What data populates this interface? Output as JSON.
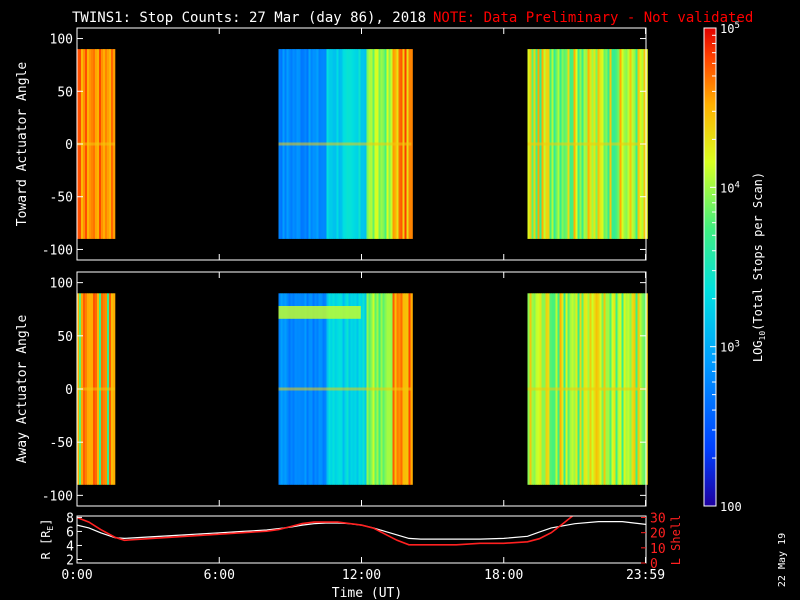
{
  "title": "TWINS1: Stop Counts: 27 Mar (day  86), 2018",
  "note": "NOTE: Data Preliminary - Not validated",
  "colors": {
    "title": "#ffffff",
    "note": "#ff0000",
    "background": "#000000",
    "axis": "#ffffff",
    "r_line": "#ffffff",
    "lshell_line": "#ff2020"
  },
  "colorbar": {
    "label": "LOG10(Total Stops per Scan)",
    "label_main": "LOG",
    "label_sub": "10",
    "label_rest": "(Total Stops per Scan)",
    "min": 100,
    "max": 100000,
    "ticks": [
      {
        "value": 100000,
        "base": "10",
        "exp": "5"
      },
      {
        "value": 10000,
        "base": "10",
        "exp": "4"
      },
      {
        "value": 1000,
        "base": "10",
        "exp": "3"
      },
      {
        "value": 100,
        "base": "100",
        "exp": ""
      }
    ]
  },
  "chart_data": [
    {
      "type": "heatmap",
      "ylabel": "Toward Actuator Angle",
      "x_range_hours": [
        0,
        24
      ],
      "ylim": [
        -110,
        110
      ],
      "yticks": [
        "100",
        "50",
        "0",
        "-50",
        "-100"
      ],
      "yticks_values": [
        100,
        50,
        0,
        -50,
        -100
      ],
      "data_y_extent": [
        -90,
        90
      ],
      "segments": [
        {
          "start_hour": 0.0,
          "end_hour": 1.6,
          "dominant_log_counts": "4.3-4.9"
        },
        {
          "start_hour": 8.5,
          "end_hour": 14.1,
          "dominant_log_counts": "2.7-4.9"
        },
        {
          "start_hour": 19.0,
          "end_hour": 23.99,
          "dominant_log_counts": "3.6-4.8"
        }
      ]
    },
    {
      "type": "heatmap",
      "ylabel": "Away Actuator Angle",
      "x_range_hours": [
        0,
        24
      ],
      "ylim": [
        -110,
        110
      ],
      "yticks": [
        "100",
        "50",
        "0",
        "-50",
        "-100"
      ],
      "yticks_values": [
        100,
        50,
        0,
        -50,
        -100
      ],
      "data_y_extent": [
        -90,
        90
      ],
      "segments": [
        {
          "start_hour": 0.0,
          "end_hour": 1.6,
          "dominant_log_counts": "4.0-4.9"
        },
        {
          "start_hour": 8.5,
          "end_hour": 14.1,
          "dominant_log_counts": "2.7-4.7"
        },
        {
          "start_hour": 19.0,
          "end_hour": 23.99,
          "dominant_log_counts": "3.6-4.8"
        }
      ]
    },
    {
      "type": "line",
      "xlabel": "Time (UT)",
      "ylabel_left": "R [R",
      "ylabel_left_sub": "E",
      "ylabel_right": "L Shell",
      "xticks": [
        "0:00",
        "6:00",
        "12:00",
        "18:00",
        "23:59"
      ],
      "xticks_hours": [
        0,
        6,
        12,
        18,
        23.98
      ],
      "yticks_left": [
        "8",
        "6",
        "4",
        "2"
      ],
      "yticks_left_values": [
        8,
        6,
        4,
        2
      ],
      "ylim_left": [
        1.5,
        8.2
      ],
      "yticks_right": [
        "30",
        "20",
        "10",
        "0"
      ],
      "yticks_right_values": [
        30,
        20,
        10,
        0
      ],
      "ylim_right": [
        0,
        31
      ],
      "series": [
        {
          "name": "R",
          "x": [
            0,
            0.5,
            1.0,
            1.6,
            2.0,
            3,
            4,
            5,
            6,
            7,
            8,
            9,
            9.5,
            10,
            10.5,
            11,
            11.5,
            12,
            12.5,
            13,
            13.5,
            14.0,
            14.5,
            15,
            16,
            17,
            18,
            19,
            19.5,
            20,
            21,
            22,
            23,
            23.99
          ],
          "y": [
            6.9,
            6.5,
            5.8,
            5.1,
            5.0,
            5.2,
            5.4,
            5.6,
            5.8,
            6.0,
            6.2,
            6.6,
            6.9,
            7.1,
            7.2,
            7.2,
            7.1,
            6.9,
            6.5,
            6.0,
            5.5,
            5.0,
            4.9,
            4.9,
            4.9,
            4.9,
            5.0,
            5.3,
            5.9,
            6.5,
            7.1,
            7.4,
            7.4,
            7.0
          ]
        },
        {
          "name": "L Shell",
          "x": [
            0,
            0.5,
            1.0,
            1.6,
            2.0,
            3,
            4,
            5,
            6,
            7,
            8,
            8.5,
            9,
            9.5,
            10,
            10.5,
            11,
            11.5,
            12,
            12.5,
            13,
            13.5,
            14.0,
            14.5,
            15,
            16,
            17,
            18,
            19,
            19.5,
            20,
            20.5,
            20.9
          ],
          "y": [
            30,
            27,
            22,
            17,
            15,
            16,
            17,
            18,
            19,
            20,
            21,
            22,
            24,
            26,
            27,
            27,
            27,
            26,
            25,
            23,
            19,
            15,
            12,
            12,
            12,
            12,
            13,
            13,
            14,
            16,
            20,
            26,
            31
          ]
        }
      ]
    }
  ],
  "footer_date": "22 May 19"
}
